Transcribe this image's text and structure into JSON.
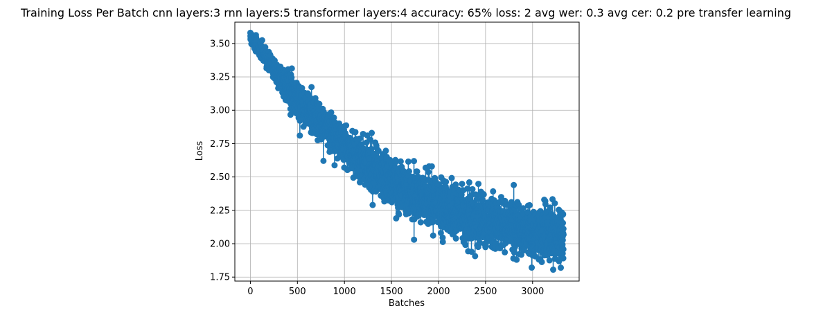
{
  "chart_data": {
    "type": "scatter",
    "title": "Training Loss Per Batch cnn layers:3 rnn layers:5 transformer layers:4 accuracy: 65% loss: 2 avg wer: 0.3 avg cer: 0.2 pre transfer learning",
    "xlabel": "Batches",
    "ylabel": "Loss",
    "xlim": [
      -165,
      3495
    ],
    "ylim": [
      1.72,
      3.66
    ],
    "xticks": [
      0,
      500,
      1000,
      1500,
      2000,
      2500,
      3000
    ],
    "xtick_labels": [
      "0",
      "500",
      "1000",
      "1500",
      "2000",
      "2500",
      "3000"
    ],
    "yticks": [
      1.75,
      2.0,
      2.25,
      2.5,
      2.75,
      3.0,
      3.25,
      3.5
    ],
    "ytick_labels": [
      "1.75",
      "2.00",
      "2.25",
      "2.50",
      "2.75",
      "3.00",
      "3.25",
      "3.50"
    ],
    "grid": true,
    "legend": "none",
    "series": [
      {
        "color": "#1f77b4",
        "marker": "circle",
        "connected": true,
        "n_points": 3330,
        "trend": {
          "x": [
            0,
            100,
            200,
            300,
            400,
            500,
            600,
            700,
            800,
            900,
            1000,
            1100,
            1200,
            1300,
            1400,
            1500,
            1600,
            1700,
            1800,
            1900,
            2000,
            2100,
            2200,
            2300,
            2400,
            2500,
            2600,
            2700,
            2800,
            2900,
            3000,
            3100,
            3200,
            3330
          ],
          "y": [
            3.55,
            3.45,
            3.35,
            3.26,
            3.18,
            3.09,
            3.01,
            2.94,
            2.87,
            2.8,
            2.74,
            2.68,
            2.62,
            2.57,
            2.52,
            2.47,
            2.43,
            2.39,
            2.35,
            2.32,
            2.29,
            2.26,
            2.23,
            2.21,
            2.19,
            2.17,
            2.15,
            2.13,
            2.12,
            2.1,
            2.09,
            2.08,
            2.07,
            2.06
          ]
        },
        "spread": {
          "x": [
            0,
            500,
            1000,
            1500,
            2000,
            2500,
            3000,
            3330
          ],
          "y": [
            0.02,
            0.06,
            0.07,
            0.08,
            0.09,
            0.09,
            0.09,
            0.09
          ]
        },
        "notable_points": [
          {
            "x": 10,
            "y": 3.57
          },
          {
            "x": 1000,
            "y": 2.88
          },
          {
            "x": 1290,
            "y": 2.83
          },
          {
            "x": 1300,
            "y": 2.29
          },
          {
            "x": 1450,
            "y": 2.65
          },
          {
            "x": 1550,
            "y": 2.19
          },
          {
            "x": 1740,
            "y": 2.03
          },
          {
            "x": 1900,
            "y": 2.58
          },
          {
            "x": 2350,
            "y": 1.94
          },
          {
            "x": 2800,
            "y": 2.44
          },
          {
            "x": 2830,
            "y": 1.88
          },
          {
            "x": 3300,
            "y": 1.82
          }
        ]
      }
    ]
  }
}
